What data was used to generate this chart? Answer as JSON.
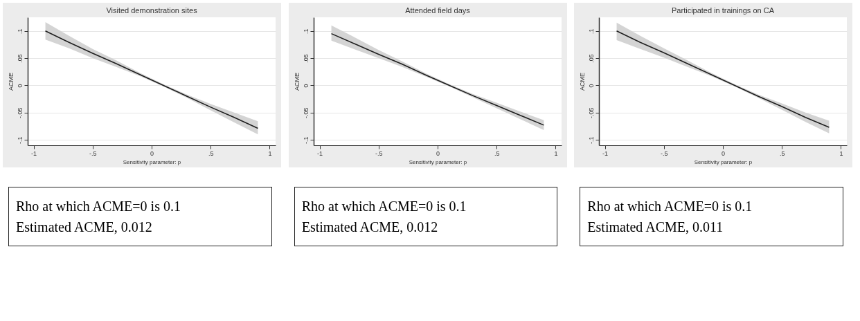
{
  "chart_data": [
    {
      "type": "line",
      "title": "Visited demonstration sites",
      "xlabel": "Sensitivity parameter: p",
      "ylabel": "ACME",
      "x": [
        -0.9,
        -0.7,
        -0.5,
        -0.3,
        -0.1,
        0.1,
        0.3,
        0.5,
        0.7,
        0.9
      ],
      "series": [
        {
          "color": "#1f1f1f",
          "values": [
            0.1,
            0.079,
            0.059,
            0.04,
            0.02,
            0.0,
            -0.02,
            -0.04,
            -0.059,
            -0.079
          ],
          "lower": [
            0.084,
            0.068,
            0.05,
            0.034,
            0.017,
            -0.002,
            -0.023,
            -0.046,
            -0.068,
            -0.09
          ],
          "upper": [
            0.116,
            0.091,
            0.067,
            0.046,
            0.023,
            0.002,
            -0.017,
            -0.034,
            -0.05,
            -0.066
          ]
        }
      ],
      "xlim": [
        -1.05,
        1.05
      ],
      "xticks": [
        {
          "value": -1,
          "label": "-1"
        },
        {
          "value": -0.5,
          "label": "-.5"
        },
        {
          "value": 0,
          "label": "0"
        },
        {
          "value": 0.5,
          "label": ".5"
        },
        {
          "value": 1,
          "label": "1"
        }
      ],
      "ylim": [
        -0.11,
        0.125
      ],
      "yticks": [
        {
          "value": -0.1,
          "label": "-.1"
        },
        {
          "value": -0.05,
          "label": "-.05"
        },
        {
          "value": 0,
          "label": "0"
        },
        {
          "value": 0.05,
          "label": ".05"
        },
        {
          "value": 0.1,
          "label": ".1"
        }
      ],
      "grid": "y",
      "marker": "none",
      "line_style": "solid",
      "annotations": [
        "Rho at which ACME=0 is 0.1",
        "Estimated ACME, 0.012"
      ]
    },
    {
      "type": "line",
      "title": "Attended field days",
      "xlabel": "Sensitivity parameter: p",
      "ylabel": "ACME",
      "x": [
        -0.9,
        -0.7,
        -0.5,
        -0.3,
        -0.1,
        0.1,
        0.3,
        0.5,
        0.7,
        0.9
      ],
      "series": [
        {
          "color": "#1f1f1f",
          "values": [
            0.095,
            0.076,
            0.057,
            0.039,
            0.019,
            0.0,
            -0.019,
            -0.037,
            -0.055,
            -0.073
          ],
          "lower": [
            0.082,
            0.066,
            0.05,
            0.034,
            0.016,
            -0.002,
            -0.022,
            -0.042,
            -0.062,
            -0.082
          ],
          "upper": [
            0.11,
            0.088,
            0.065,
            0.044,
            0.022,
            0.002,
            -0.016,
            -0.032,
            -0.048,
            -0.064
          ]
        }
      ],
      "xlim": [
        -1.05,
        1.05
      ],
      "xticks": [
        {
          "value": -1,
          "label": "-1"
        },
        {
          "value": -0.5,
          "label": "-.5"
        },
        {
          "value": 0,
          "label": "0"
        },
        {
          "value": 0.5,
          "label": ".5"
        },
        {
          "value": 1,
          "label": "1"
        }
      ],
      "ylim": [
        -0.11,
        0.125
      ],
      "yticks": [
        {
          "value": -0.1,
          "label": "-.1"
        },
        {
          "value": -0.05,
          "label": "-.05"
        },
        {
          "value": 0,
          "label": "0"
        },
        {
          "value": 0.05,
          "label": ".05"
        },
        {
          "value": 0.1,
          "label": ".1"
        }
      ],
      "grid": "y",
      "marker": "none",
      "line_style": "solid",
      "annotations": [
        "Rho at which ACME=0 is 0.1",
        "Estimated ACME, 0.012"
      ]
    },
    {
      "type": "line",
      "title": "Participated in trainings on CA",
      "xlabel": "Sensitivity parameter: p",
      "ylabel": "ACME",
      "x": [
        -0.9,
        -0.7,
        -0.5,
        -0.3,
        -0.1,
        0.1,
        0.3,
        0.5,
        0.7,
        0.9
      ],
      "series": [
        {
          "color": "#1f1f1f",
          "values": [
            0.1,
            0.079,
            0.06,
            0.04,
            0.02,
            0.0,
            -0.02,
            -0.039,
            -0.059,
            -0.077
          ],
          "lower": [
            0.083,
            0.067,
            0.051,
            0.034,
            0.017,
            -0.002,
            -0.023,
            -0.045,
            -0.067,
            -0.088
          ],
          "upper": [
            0.115,
            0.091,
            0.068,
            0.046,
            0.023,
            0.002,
            -0.017,
            -0.033,
            -0.05,
            -0.065
          ]
        }
      ],
      "xlim": [
        -1.05,
        1.05
      ],
      "xticks": [
        {
          "value": -1,
          "label": "-1"
        },
        {
          "value": -0.5,
          "label": "-.5"
        },
        {
          "value": 0,
          "label": "0"
        },
        {
          "value": 0.5,
          "label": ".5"
        },
        {
          "value": 1,
          "label": "1"
        }
      ],
      "ylim": [
        -0.11,
        0.125
      ],
      "yticks": [
        {
          "value": -0.1,
          "label": "-.1"
        },
        {
          "value": -0.05,
          "label": "-.05"
        },
        {
          "value": 0,
          "label": "0"
        },
        {
          "value": 0.05,
          "label": ".05"
        },
        {
          "value": 0.1,
          "label": ".1"
        }
      ],
      "grid": "y",
      "marker": "none",
      "line_style": "solid",
      "annotations": [
        "Rho at which ACME=0 is 0.1",
        "Estimated ACME, 0.011"
      ]
    }
  ]
}
